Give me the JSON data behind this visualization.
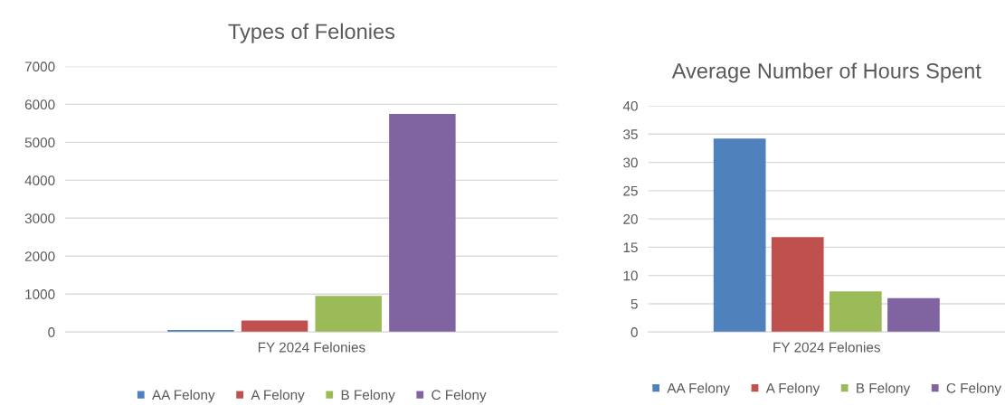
{
  "chart_data": [
    {
      "type": "bar",
      "title": "Types of Felonies",
      "categories": [
        "FY 2024 Felonies"
      ],
      "series": [
        {
          "name": "AA Felony",
          "color": "#4f81bd",
          "values": [
            50
          ]
        },
        {
          "name": "A Felony",
          "color": "#c0504d",
          "values": [
            300
          ]
        },
        {
          "name": "B Felony",
          "color": "#9bbb59",
          "values": [
            950
          ]
        },
        {
          "name": "C Felony",
          "color": "#8064a2",
          "values": [
            5750
          ]
        }
      ],
      "ylim": [
        0,
        7000
      ],
      "yticks": [
        0,
        1000,
        2000,
        3000,
        4000,
        5000,
        6000,
        7000
      ],
      "grid": "y",
      "legend": "bottom"
    },
    {
      "type": "bar",
      "title": "Average Number of Hours Spent",
      "categories": [
        "FY 2024 Felonies"
      ],
      "series": [
        {
          "name": "AA Felony",
          "color": "#4f81bd",
          "values": [
            34.2
          ]
        },
        {
          "name": "A Felony",
          "color": "#c0504d",
          "values": [
            16.8
          ]
        },
        {
          "name": "B Felony",
          "color": "#9bbb59",
          "values": [
            7.2
          ]
        },
        {
          "name": "C Felony",
          "color": "#8064a2",
          "values": [
            6.0
          ]
        }
      ],
      "ylim": [
        0,
        40
      ],
      "yticks": [
        0,
        5,
        10,
        15,
        20,
        25,
        30,
        35,
        40
      ],
      "grid": "y",
      "legend": "bottom"
    }
  ]
}
